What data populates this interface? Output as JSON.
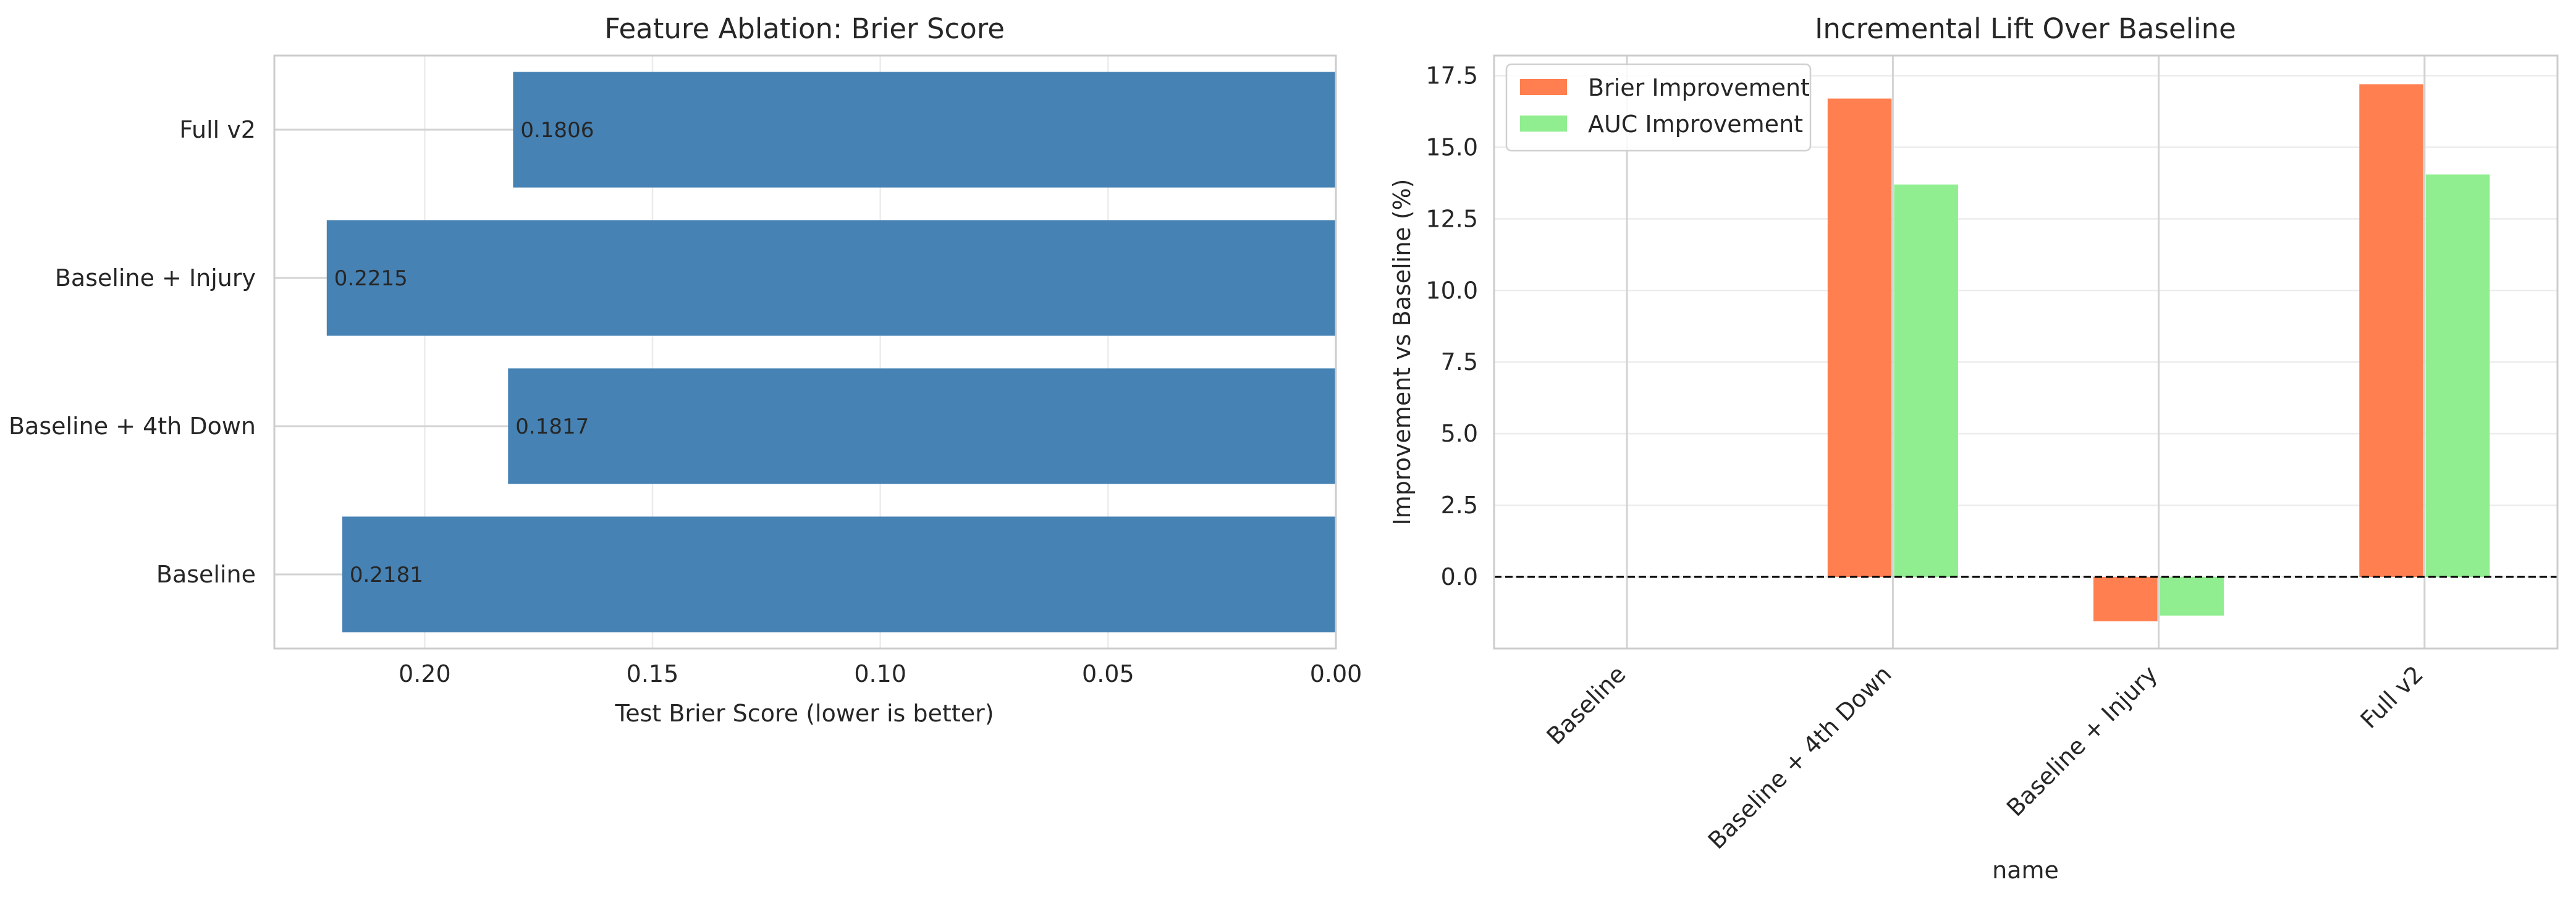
{
  "chart_data": [
    {
      "type": "bar",
      "orientation": "horizontal",
      "title": "Feature Ablation: Brier Score",
      "xlabel": "Test Brier Score (lower is better)",
      "ylabel": "",
      "categories": [
        "Baseline",
        "Baseline + 4th Down",
        "Baseline + Injury",
        "Full v2"
      ],
      "values": [
        0.2181,
        0.1817,
        0.2215,
        0.1806
      ],
      "value_labels": [
        "0.2181",
        "0.1817",
        "0.2215",
        "0.1806"
      ],
      "xlim": [
        0.233,
        0.0
      ],
      "x_inverted": true,
      "xticks": [
        0.2,
        0.15,
        0.1,
        0.05,
        0.0
      ],
      "xtick_labels": [
        "0.20",
        "0.15",
        "0.10",
        "0.05",
        "0.00"
      ],
      "bar_color": "#4682b4",
      "grid": true
    },
    {
      "type": "bar",
      "title": "Incremental Lift Over Baseline",
      "xlabel": "name",
      "ylabel": "Improvement vs Baseline (%)",
      "categories": [
        "Baseline",
        "Baseline + 4th Down",
        "Baseline + Injury",
        "Full v2"
      ],
      "series": [
        {
          "name": "Brier Improvement",
          "color": "#ff7f50",
          "values": [
            0.0,
            16.7,
            -1.55,
            17.2
          ]
        },
        {
          "name": "AUC Improvement",
          "color": "#90ee90",
          "values": [
            0.0,
            13.7,
            -1.35,
            14.05
          ]
        }
      ],
      "ylim": [
        -2.5,
        18.2
      ],
      "yticks": [
        0.0,
        2.5,
        5.0,
        7.5,
        10.0,
        12.5,
        15.0,
        17.5
      ],
      "ytick_labels": [
        "0.0",
        "2.5",
        "5.0",
        "7.5",
        "10.0",
        "12.5",
        "15.0",
        "17.5"
      ],
      "reference_line": {
        "y": 0,
        "style": "dashed",
        "color": "#000000"
      },
      "legend_position": "upper-left",
      "grid": true
    }
  ]
}
